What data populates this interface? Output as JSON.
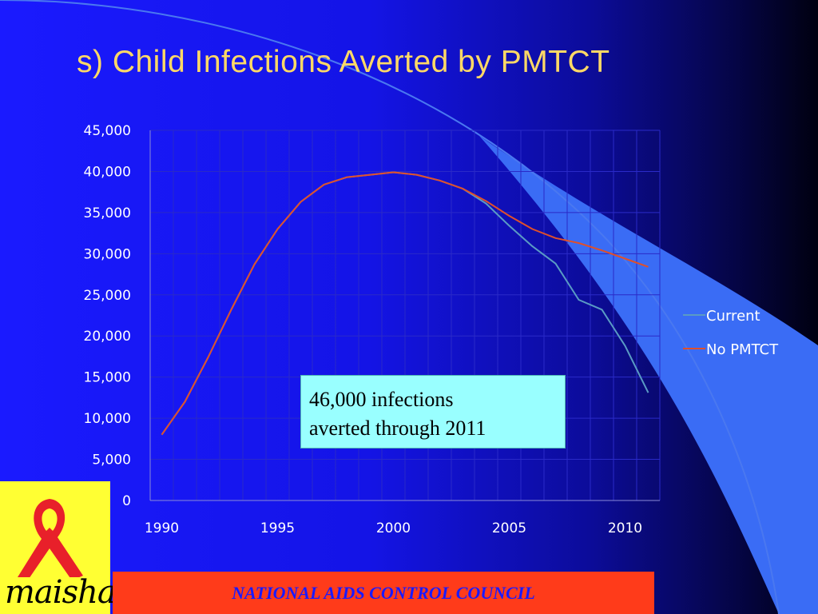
{
  "slide": {
    "title": "s)  Child Infections Averted by PMTCT",
    "callout": {
      "line1": "46,000 infections",
      "line2": "averted through 2011"
    },
    "logo_text": "maisha!",
    "footer": "NATIONAL AIDS CONTROL COUNCIL"
  },
  "chart_data": {
    "type": "line",
    "title": "",
    "xlabel": "",
    "ylabel": "",
    "x": [
      1990,
      1991,
      1992,
      1993,
      1994,
      1995,
      1996,
      1997,
      1998,
      1999,
      2000,
      2001,
      2002,
      2003,
      2004,
      2005,
      2006,
      2007,
      2008,
      2009,
      2010,
      2011
    ],
    "xticks": [
      "1990",
      "1995",
      "2000",
      "2005",
      "2010"
    ],
    "yticks": [
      "0",
      "5,000",
      "10,000",
      "15,000",
      "20,000",
      "25,000",
      "30,000",
      "35,000",
      "40,000",
      "45,000"
    ],
    "ylim": [
      0,
      45000
    ],
    "grid": true,
    "legend_position": "right",
    "series": [
      {
        "name": "Current",
        "color": "#5a9bc4",
        "values": [
          8000,
          12000,
          17400,
          23200,
          28700,
          33000,
          36300,
          38400,
          39300,
          39600,
          39900,
          39600,
          38900,
          37900,
          36100,
          33400,
          30900,
          28800,
          24400,
          23200,
          18800,
          13100
        ]
      },
      {
        "name": "No PMTCT",
        "color": "#e0502a",
        "values": [
          8000,
          12000,
          17400,
          23200,
          28700,
          33000,
          36300,
          38400,
          39300,
          39600,
          39900,
          39600,
          38900,
          37900,
          36400,
          34600,
          33000,
          31900,
          31300,
          30400,
          29400,
          28400
        ]
      }
    ]
  }
}
